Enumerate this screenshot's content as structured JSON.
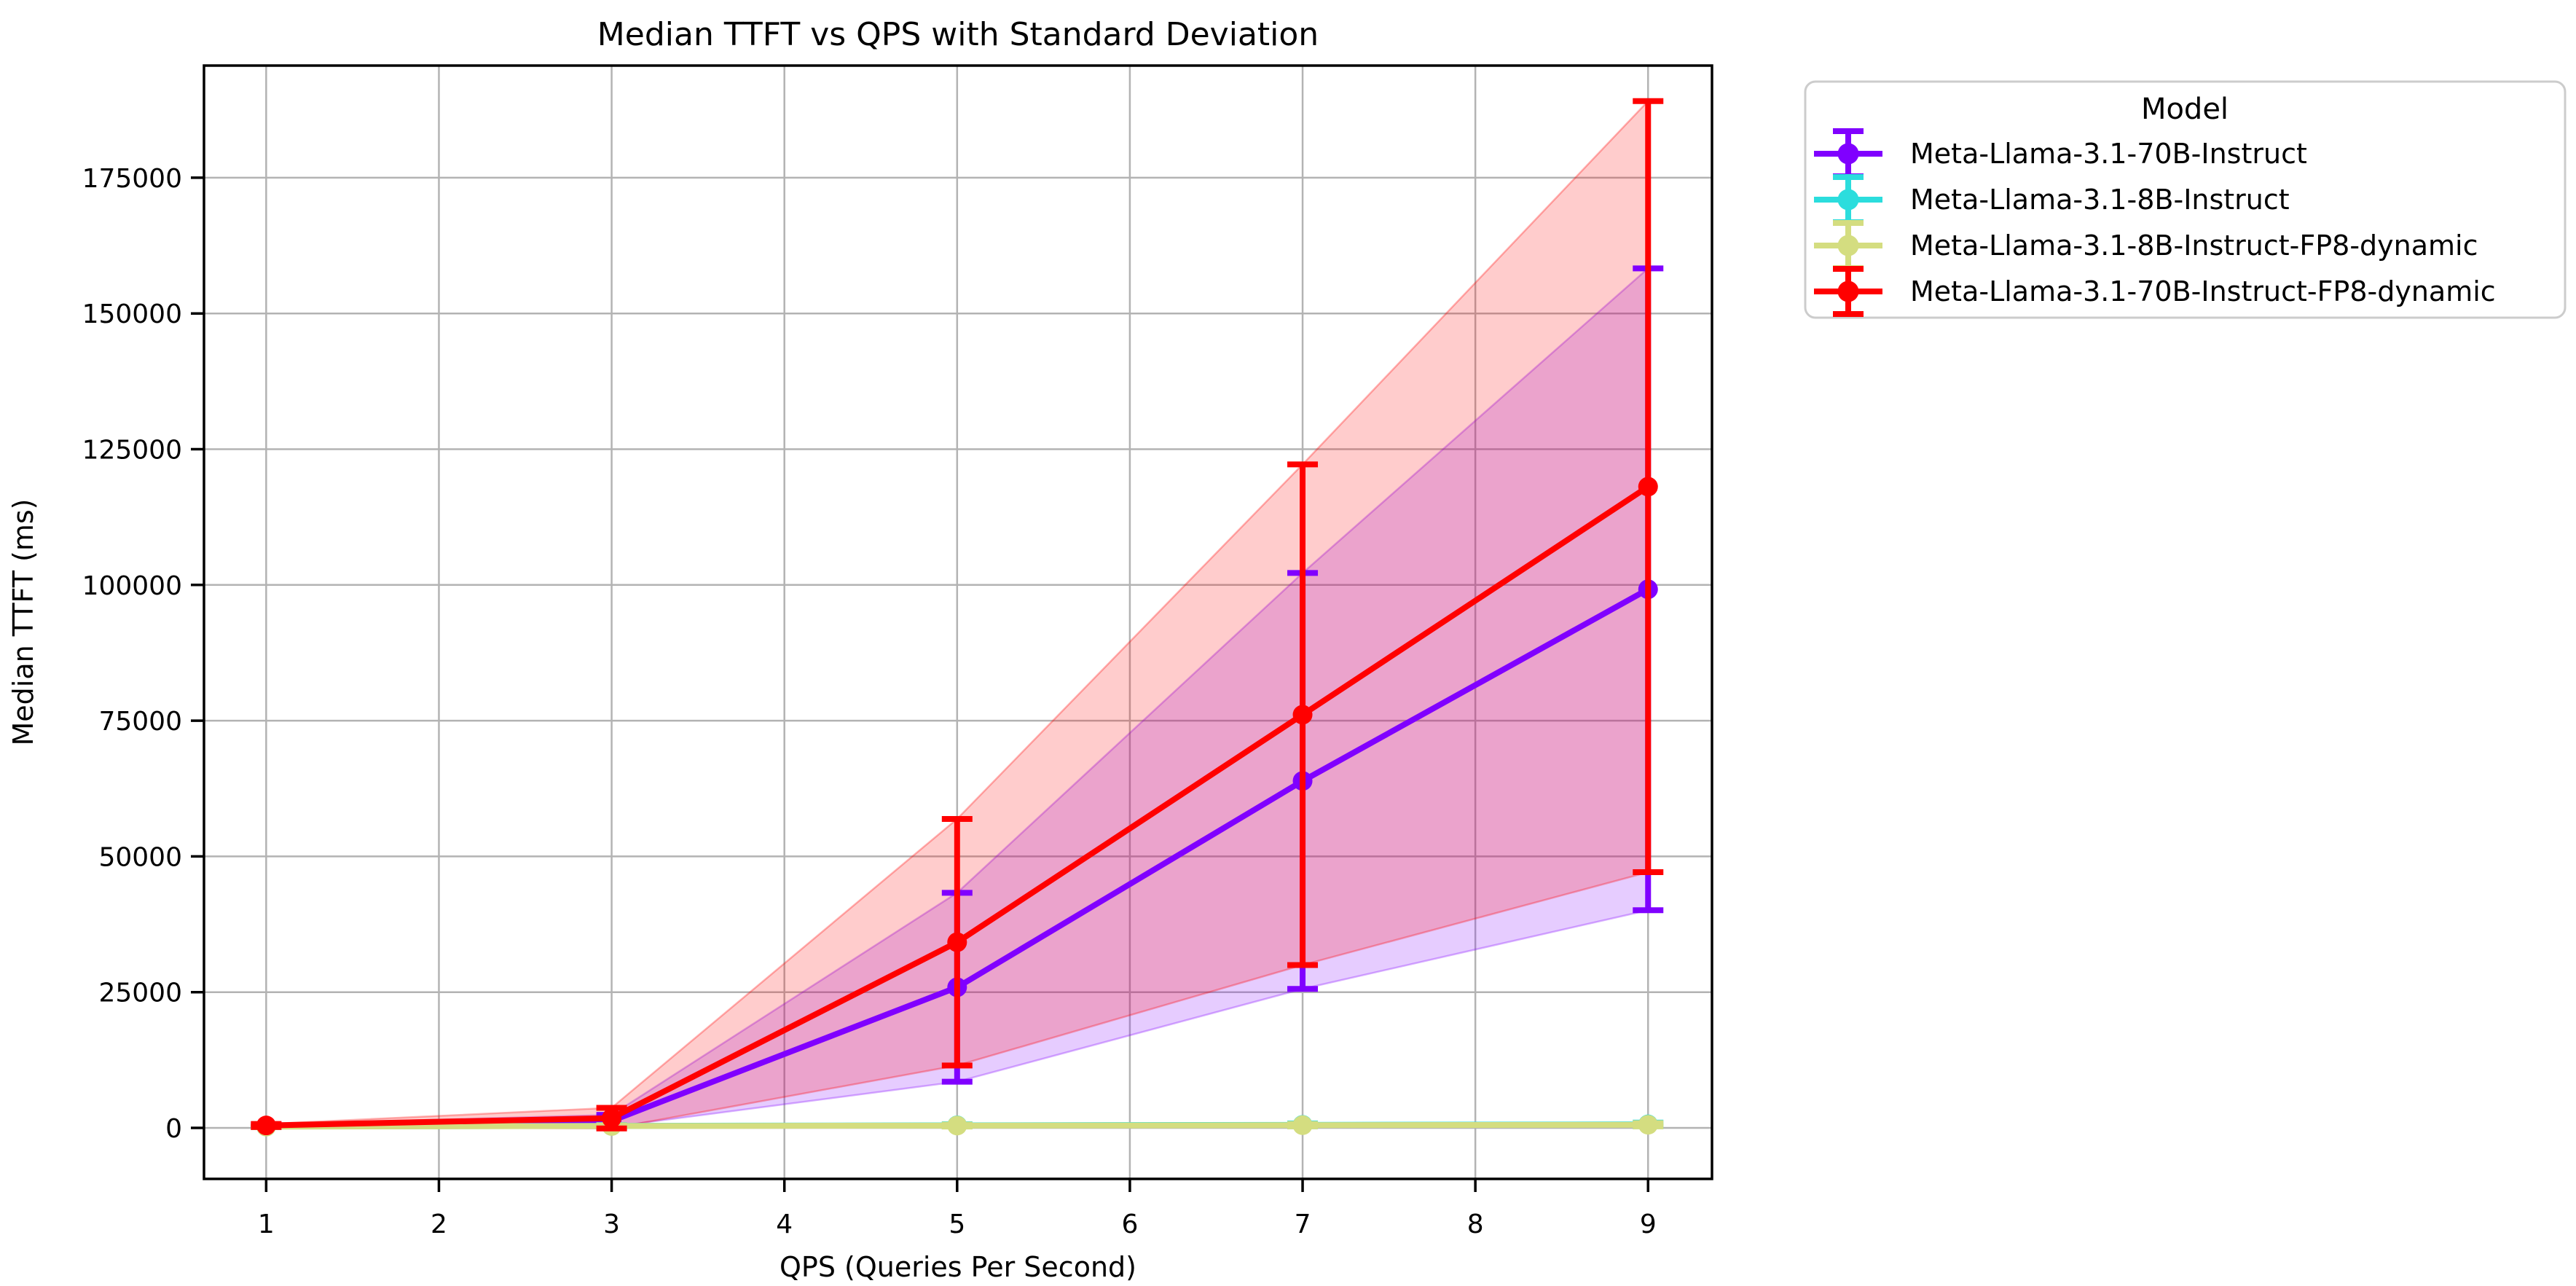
{
  "figure": {
    "title": "Median TTFT vs QPS with Standard Deviation"
  },
  "axes": {
    "xlabel": "QPS (Queries Per Second)",
    "ylabel": "Median TTFT (ms)"
  },
  "legend": {
    "title": "Model",
    "position": "upper right, outside plot"
  },
  "chart_data": {
    "type": "line",
    "title": "Median TTFT vs QPS with Standard Deviation",
    "xlabel": "QPS (Queries Per Second)",
    "ylabel": "Median TTFT (ms)",
    "x": [
      1,
      3,
      5,
      7,
      9
    ],
    "x_ticks": [
      1,
      2,
      3,
      4,
      5,
      6,
      7,
      8,
      9
    ],
    "y_ticks": [
      0,
      25000,
      50000,
      75000,
      100000,
      125000,
      150000,
      175000
    ],
    "xlim": [
      0.64,
      9.37
    ],
    "ylim": [
      -9390,
      195650
    ],
    "grid": true,
    "band": "mean ± 1 std dev, fill alpha 0.2",
    "error_bars": "± 1 std dev with caps",
    "grid_color": "#b3b3b3",
    "series": [
      {
        "name": "Meta-Llama-3.1-70B-Instruct",
        "color": "#8000ff",
        "median": [
          400,
          1300,
          25900,
          63900,
          99200
        ],
        "std": [
          250,
          1100,
          17400,
          38300,
          59100
        ]
      },
      {
        "name": "Meta-Llama-3.1-8B-Instruct",
        "color": "#2bdddd",
        "median": [
          260,
          380,
          480,
          560,
          650
        ],
        "std": [
          90,
          140,
          200,
          260,
          330
        ]
      },
      {
        "name": "Meta-Llama-3.1-8B-Instruct-FP8-dynamic",
        "color": "#d4dd80",
        "median": [
          240,
          350,
          430,
          500,
          580
        ],
        "std": [
          80,
          120,
          170,
          220,
          290
        ]
      },
      {
        "name": "Meta-Llama-3.1-70B-Instruct-FP8-dynamic",
        "color": "#ff0000",
        "median": [
          450,
          1800,
          34200,
          76100,
          118100
        ],
        "std": [
          280,
          1900,
          22700,
          46100,
          71000
        ]
      }
    ]
  }
}
